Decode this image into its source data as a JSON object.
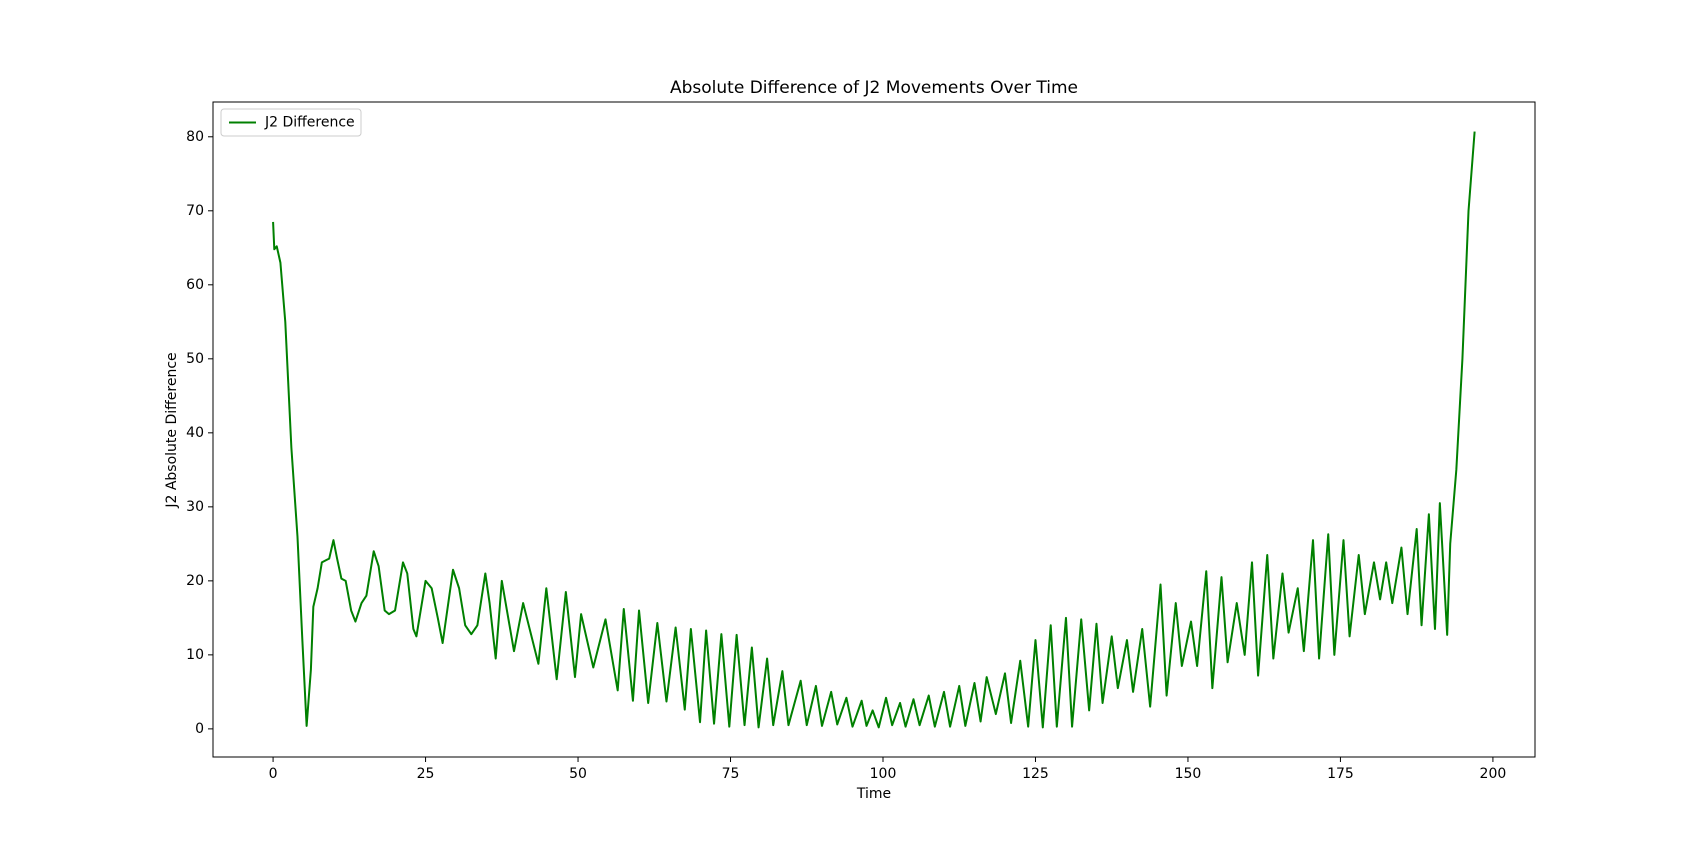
{
  "chart_data": {
    "type": "line",
    "title": "Absolute Difference of J2 Movements Over Time",
    "xlabel": "Time",
    "ylabel": "J2 Absolute Difference",
    "x": [
      0,
      0.2,
      0.6,
      1.2,
      2,
      3,
      4,
      4.8,
      5.5,
      6.2,
      6.6,
      7.3,
      8,
      8.7,
      9.2,
      9.9,
      10.5,
      11.2,
      11.9,
      12.8,
      13.5,
      14.5,
      15.3,
      16.5,
      17.3,
      18.3,
      19,
      20,
      21.3,
      22,
      23,
      23.5,
      25,
      26,
      27,
      27.8,
      29.5,
      30.5,
      31.5,
      32.5,
      33.5,
      34.8,
      35.5,
      36.5,
      37.5,
      39.5,
      41,
      43.5,
      44.8,
      46.5,
      48,
      49.5,
      50.5,
      52.5,
      54.5,
      56.5,
      57.5,
      59,
      60,
      61.5,
      63,
      64.5,
      66,
      67.5,
      68.5,
      70,
      71,
      72.3,
      73.5,
      74.8,
      76,
      77.3,
      78.5,
      79.6,
      81,
      82,
      83.5,
      84.5,
      86.5,
      87.5,
      89,
      90,
      91.5,
      92.5,
      94,
      95,
      96.5,
      97.3,
      98.3,
      99.3,
      100.5,
      101.5,
      102.8,
      103.7,
      105,
      106,
      107.5,
      108.5,
      110,
      111,
      112.5,
      113.5,
      115,
      116,
      117,
      118.5,
      120,
      121,
      122.5,
      123.8,
      125,
      126.2,
      127.5,
      128.5,
      130,
      131,
      132.5,
      133.8,
      135,
      136,
      137.5,
      138.5,
      140,
      141,
      142.5,
      143.8,
      145.5,
      146.5,
      148,
      149,
      150.5,
      151.5,
      153,
      154,
      155.5,
      156.5,
      158,
      159.3,
      160.5,
      161.5,
      163,
      164,
      165.5,
      166.5,
      168,
      169,
      170.5,
      171.5,
      173,
      174,
      175.5,
      176.5,
      178,
      179,
      180.5,
      181.5,
      182.5,
      183.5,
      185,
      186,
      187.5,
      188.3,
      189.5,
      190.5,
      191.3,
      192.5,
      193,
      194,
      195,
      196,
      197
    ],
    "series": [
      {
        "name": "J2 Difference",
        "color": "#008000",
        "values": [
          68.5,
          64.8,
          65.2,
          63,
          55,
          38,
          26,
          12,
          0.4,
          8,
          16.5,
          19,
          22.5,
          22.8,
          23,
          25.5,
          23,
          20.3,
          20,
          16,
          14.5,
          17,
          18,
          24,
          22,
          16,
          15.5,
          16,
          22.5,
          21,
          13.5,
          12.5,
          20,
          19,
          15,
          11.6,
          21.5,
          19,
          14,
          12.8,
          14,
          21,
          17,
          9.5,
          20,
          10.5,
          17,
          8.8,
          19,
          6.7,
          18.5,
          7,
          15.5,
          8.3,
          14.8,
          5.2,
          16.2,
          3.8,
          16,
          3.5,
          14.3,
          3.7,
          13.7,
          2.6,
          13.5,
          0.9,
          13.3,
          0.7,
          12.8,
          0.3,
          12.7,
          0.5,
          11,
          0.2,
          9.5,
          0.5,
          7.8,
          0.5,
          6.5,
          0.5,
          5.8,
          0.4,
          5,
          0.6,
          4.2,
          0.3,
          3.8,
          0.4,
          2.5,
          0.2,
          4.2,
          0.5,
          3.5,
          0.3,
          4,
          0.5,
          4.5,
          0.3,
          5,
          0.3,
          5.8,
          0.4,
          6.2,
          1,
          7,
          2,
          7.5,
          0.8,
          9.2,
          0.3,
          12,
          0.2,
          14,
          0.3,
          15,
          0.3,
          14.8,
          2.5,
          14.2,
          3.5,
          12.5,
          5.5,
          12,
          5,
          13.5,
          3,
          19.5,
          4.5,
          17,
          8.5,
          14.5,
          8.5,
          21.3,
          5.5,
          20.5,
          9,
          17,
          10,
          22.5,
          7.2,
          23.5,
          9.5,
          21,
          13,
          19,
          10.5,
          25.5,
          9.5,
          26.3,
          10,
          25.5,
          12.5,
          23.5,
          15.5,
          22.5,
          17.5,
          22.5,
          17,
          24.5,
          15.5,
          27,
          14,
          29,
          13.5,
          30.5,
          12.7,
          25,
          35,
          50,
          70,
          80.7
        ]
      }
    ],
    "xlim": [
      -9.85,
      206.9
    ],
    "ylim": [
      -3.8,
      84.7
    ],
    "xticks": [
      0,
      25,
      50,
      75,
      100,
      125,
      150,
      175,
      200
    ],
    "yticks": [
      0,
      10,
      20,
      30,
      40,
      50,
      60,
      70,
      80
    ],
    "grid": false,
    "legend": "upper left"
  }
}
